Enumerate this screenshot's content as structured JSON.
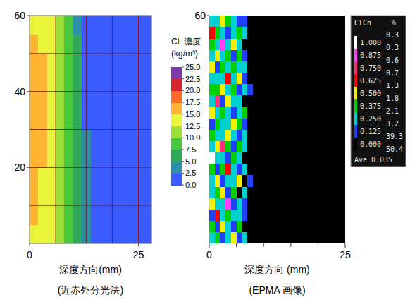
{
  "chart_data": [
    {
      "type": "heatmap",
      "x_label": "深度方向(mm)",
      "caption": "(近赤外分光法)",
      "xlim": [
        0,
        28
      ],
      "xticks": [
        0,
        25
      ],
      "ylim": [
        0,
        60
      ],
      "yticks": [
        20,
        40,
        60
      ],
      "grid": true,
      "mesh_x": [
        6,
        13,
        19,
        25
      ],
      "mesh_y": [
        10,
        20,
        30,
        40,
        50
      ],
      "x_edges": [
        0,
        2,
        4,
        6,
        8,
        10,
        12,
        14,
        16,
        18,
        20,
        22,
        24,
        26,
        28
      ],
      "y_edges": [
        0,
        5,
        10,
        15,
        20,
        25,
        30,
        35,
        40,
        45,
        50,
        55,
        60
      ],
      "cells": [
        [
          14.5,
          13.8,
          12.8,
          11,
          8.5,
          5.5,
          3.5,
          1.8,
          1.3,
          1,
          0.9,
          0.8,
          0.8,
          0.8
        ],
        [
          15.2,
          14,
          13,
          11,
          8.8,
          5.8,
          3.3,
          1.7,
          1.3,
          1,
          0.9,
          0.8,
          0.8,
          0.8
        ],
        [
          15.6,
          14.3,
          13.1,
          11.2,
          9,
          6,
          3.2,
          1.6,
          1.2,
          1,
          0.9,
          0.8,
          0.8,
          0.8
        ],
        [
          16,
          14.6,
          13.2,
          11.3,
          9.2,
          6.2,
          3,
          1.6,
          1.2,
          1,
          0.9,
          0.8,
          0.8,
          0.8
        ],
        [
          16.5,
          15.2,
          13.3,
          11.4,
          9.3,
          6.5,
          2.8,
          1.5,
          1.2,
          1,
          0.9,
          0.8,
          0.8,
          0.8
        ],
        [
          17,
          15.4,
          13.4,
          11.5,
          9.4,
          6.6,
          2.6,
          1.5,
          1.1,
          1,
          0.9,
          0.8,
          0.8,
          0.8
        ],
        [
          17.2,
          15.5,
          13.5,
          11.6,
          9.5,
          6.8,
          2.4,
          1.4,
          1.1,
          1,
          0.9,
          0.8,
          0.8,
          0.8
        ],
        [
          17.1,
          15.4,
          13.4,
          11.5,
          9.3,
          6.4,
          2.2,
          1.4,
          1.1,
          1,
          0.9,
          0.8,
          0.8,
          0.8
        ],
        [
          16.8,
          15.2,
          13.2,
          11.3,
          9,
          6,
          2.1,
          1.3,
          1.1,
          1,
          0.9,
          0.8,
          0.8,
          0.8
        ],
        [
          16.2,
          15.1,
          13,
          11.1,
          8.8,
          5.6,
          2,
          1.3,
          1,
          1,
          0.9,
          0.8,
          0.8,
          0.8
        ],
        [
          15.3,
          14.8,
          12.8,
          10.8,
          8.6,
          5.2,
          1.9,
          1.2,
          1,
          1,
          0.9,
          0.8,
          0.8,
          0.8
        ],
        [
          14.6,
          14.2,
          12.6,
          10.6,
          8.4,
          4.8,
          1.8,
          1.2,
          1,
          1,
          0.9,
          0.8,
          0.8,
          0.8
        ]
      ],
      "colorbar": {
        "title": "Cl⁻濃度",
        "unit": "(kg/m³)",
        "range": [
          0,
          25
        ],
        "ticks": [
          {
            "value": 0,
            "label": "0.0"
          },
          {
            "value": 2.5,
            "label": "2.5"
          },
          {
            "value": 5,
            "label": "5.0"
          },
          {
            "value": 7.5,
            "label": "7.5"
          },
          {
            "value": 10,
            "label": "10.0"
          },
          {
            "value": 12.5,
            "label": "12.5"
          },
          {
            "value": 15,
            "label": "15.0"
          },
          {
            "value": 17.5,
            "label": "17.5"
          },
          {
            "value": 20,
            "label": "20.0"
          },
          {
            "value": 22.5,
            "label": "22.5"
          },
          {
            "value": 25,
            "label": "25.0"
          }
        ],
        "colors": [
          "#3a5bff",
          "#2b8fa8",
          "#2fa85a",
          "#48c83c",
          "#9be03a",
          "#e8f53a",
          "#ffb233",
          "#ff6a2a",
          "#d8242c",
          "#7e3aa8"
        ]
      }
    },
    {
      "type": "heatmap",
      "x_label": "深度方向 (mm)",
      "caption": "(EPMA 画像)",
      "xlim": [
        0,
        25
      ],
      "xticks": [
        0,
        25
      ],
      "minor_xticks": [
        5,
        10,
        15,
        20
      ],
      "ylim": [
        0,
        60
      ],
      "yticks": [
        60
      ],
      "x_edges": [
        0,
        1,
        2,
        3,
        4,
        5,
        6,
        7,
        8
      ],
      "y_edges": [
        0,
        3,
        6,
        9,
        12,
        15,
        18,
        21,
        24,
        27,
        30,
        33,
        36,
        39,
        42,
        45,
        48,
        51,
        54,
        57,
        60
      ],
      "cells": [
        [
          0.3,
          0.45,
          0.2,
          0.35,
          0.55,
          0.15,
          0.25,
          0.05
        ],
        [
          0.4,
          0.15,
          0.6,
          0.3,
          0.2,
          0.4,
          0.1,
          0.12
        ],
        [
          0.2,
          0.7,
          0.35,
          0.45,
          0.3,
          0.25,
          0.15,
          0.02
        ],
        [
          0.55,
          0.3,
          0.25,
          0.9,
          0.15,
          0.35,
          0.2,
          0.1
        ],
        [
          0.35,
          0.4,
          0.5,
          0.2,
          0.45,
          0.1,
          0.3,
          0.0
        ],
        [
          0.25,
          0.6,
          0.15,
          0.35,
          0.3,
          0.5,
          0.12,
          0.15
        ],
        [
          0.45,
          0.2,
          0.4,
          0.65,
          0.25,
          0.2,
          0.35,
          0.05
        ],
        [
          1.0,
          0.35,
          0.3,
          0.15,
          0.4,
          0.3,
          0.1,
          0.12
        ],
        [
          0.3,
          0.5,
          0.75,
          0.4,
          0.2,
          0.45,
          0.25,
          0.02
        ],
        [
          0.4,
          0.25,
          0.35,
          0.55,
          0.35,
          0.15,
          0.3,
          0.1
        ],
        [
          0.2,
          0.45,
          0.3,
          0.25,
          0.6,
          0.4,
          0.15,
          0.0
        ],
        [
          0.6,
          0.3,
          0.45,
          0.35,
          0.2,
          0.25,
          0.4,
          0.12
        ],
        [
          0.35,
          0.85,
          0.2,
          0.5,
          0.3,
          0.35,
          0.1,
          0.05
        ],
        [
          0.45,
          0.4,
          0.55,
          0.3,
          0.45,
          0.2,
          0.25,
          0.15
        ],
        [
          0.25,
          0.3,
          0.35,
          0.7,
          0.25,
          0.5,
          0.15,
          0.02
        ],
        [
          0.5,
          0.2,
          0.4,
          0.35,
          0.4,
          0.3,
          0.35,
          0.1
        ],
        [
          0.3,
          0.55,
          0.25,
          0.45,
          0.15,
          0.4,
          0.2,
          0.0
        ],
        [
          0.4,
          0.35,
          0.95,
          0.3,
          0.5,
          0.25,
          0.1,
          0.12
        ],
        [
          0.65,
          0.45,
          0.3,
          0.2,
          0.35,
          0.45,
          0.3,
          0.05
        ],
        [
          0.35,
          0.25,
          0.5,
          0.4,
          0.3,
          0.15,
          0.2,
          0.1
        ]
      ],
      "colorbar": {
        "title": "ClCn",
        "percent_title": "%",
        "levels": [
          {
            "value": 1,
            "label": "1.000"
          },
          {
            "value": 0.875,
            "label": "0.875"
          },
          {
            "value": 0.75,
            "label": "0.750"
          },
          {
            "value": 0.625,
            "label": "0.625"
          },
          {
            "value": 0.5,
            "label": "0.500"
          },
          {
            "value": 0.375,
            "label": "0.375"
          },
          {
            "value": 0.25,
            "label": "0.250"
          },
          {
            "value": 0.125,
            "label": "0.125"
          },
          {
            "value": 0,
            "label": "0.000"
          }
        ],
        "colors": [
          "#ffffff",
          "#ff40ff",
          "#ff3070",
          "#ff0000",
          "#f0f000",
          "#00d000",
          "#00d0d0",
          "#2040ff",
          "#000000"
        ],
        "percents": [
          0.3,
          0.3,
          0.6,
          0.7,
          1.3,
          1.8,
          2.1,
          3.2,
          39.3,
          50.4
        ],
        "average_label": "Ave",
        "average": 0.035
      }
    }
  ]
}
